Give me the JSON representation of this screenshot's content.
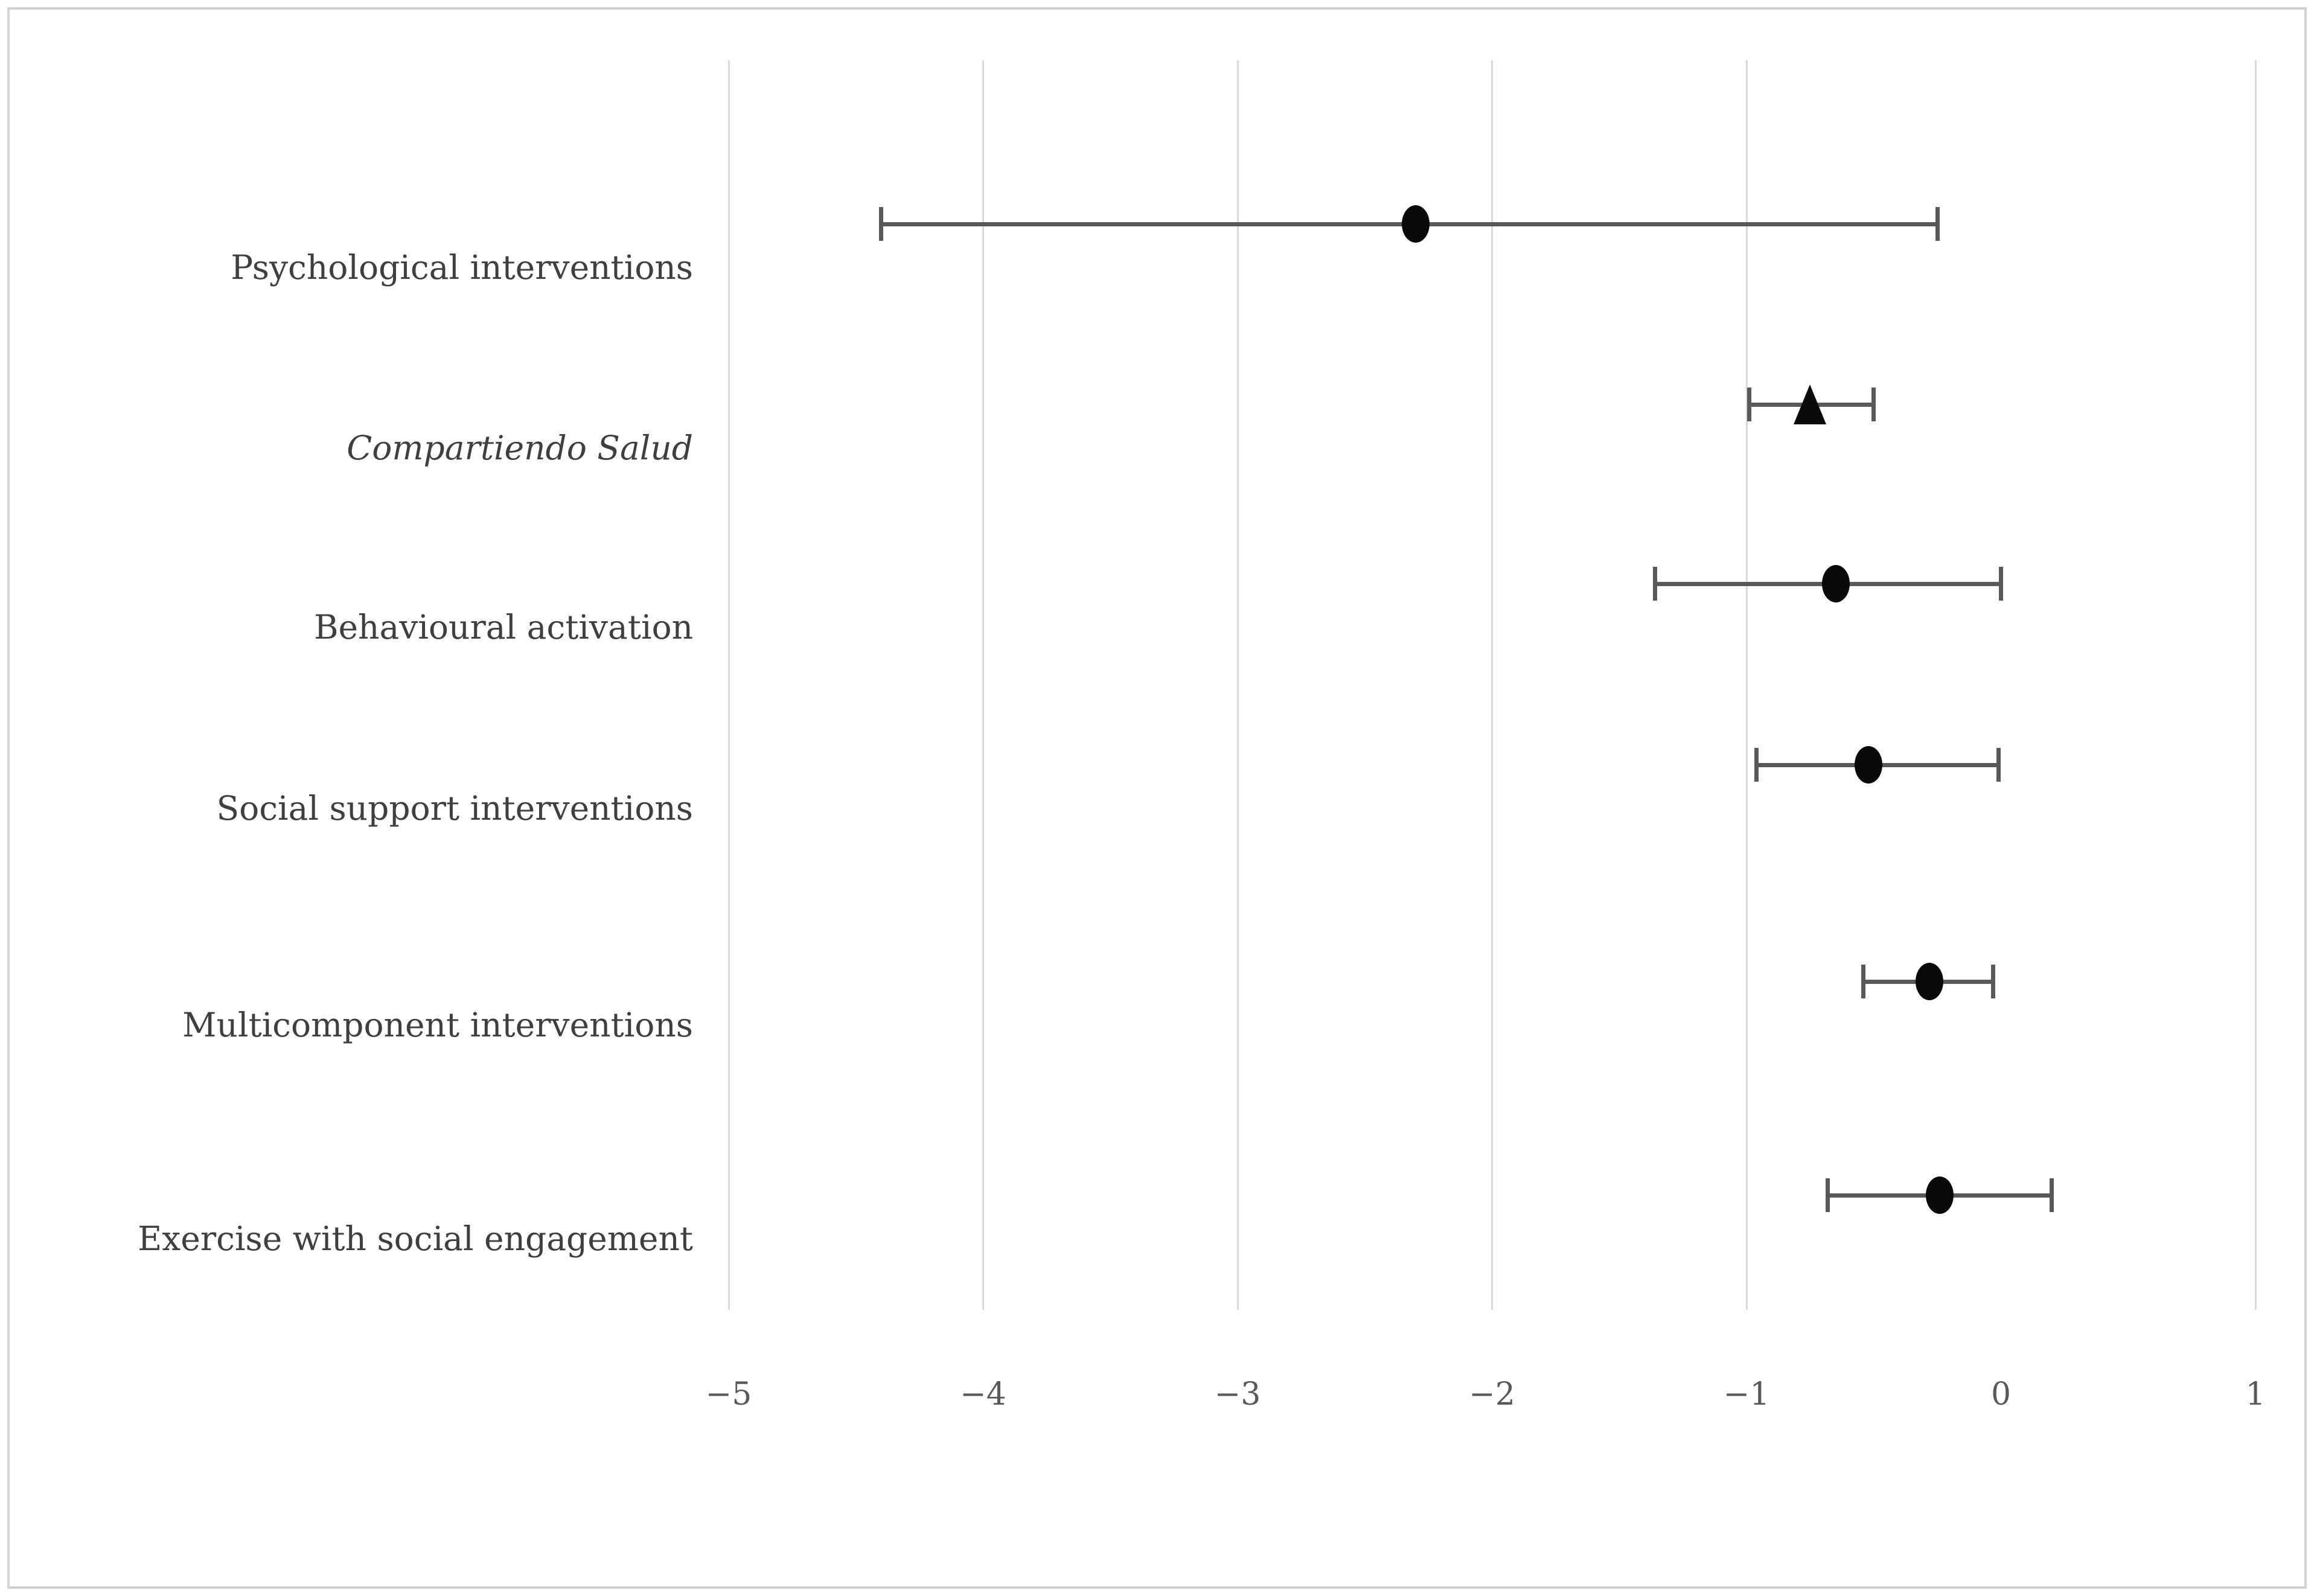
{
  "figure": {
    "title": "",
    "border_color": "#d2d2d2",
    "background_color": "#ffffff"
  },
  "chart_data": {
    "type": "scatter",
    "subtype": "forest-plot-with-error-bars",
    "title": "",
    "xlabel": "",
    "ylabel": "",
    "xlim": [
      -5,
      1
    ],
    "grid": true,
    "legend": false,
    "x_tick_values": [
      -5,
      -4,
      -3,
      -2,
      -1,
      0,
      1
    ],
    "x_tick_labels": [
      "−5",
      "−4",
      "−3",
      "−2",
      "−1",
      "0",
      "1"
    ],
    "gridline_values": [
      -5,
      -4,
      -3,
      -2,
      -1,
      1
    ],
    "categories": [
      "Psychological interventions",
      "Compartiendo Salud",
      "Behavioural activation",
      "Social support interventions",
      "Multicomponent interventions",
      "Exercise with social engagement"
    ],
    "points": [
      {
        "label": "Psychological interventions",
        "estimate": -2.3,
        "ci_low": -4.4,
        "ci_high": -0.25,
        "marker": "ellipse",
        "italic": false
      },
      {
        "label": "Compartiendo Salud",
        "estimate": -0.75,
        "ci_low": -0.99,
        "ci_high": -0.5,
        "marker": "triangle",
        "italic": true
      },
      {
        "label": "Behavioural activation",
        "estimate": -0.65,
        "ci_low": -1.36,
        "ci_high": 0.0,
        "marker": "ellipse",
        "italic": false
      },
      {
        "label": "Social support interventions",
        "estimate": -0.52,
        "ci_low": -0.96,
        "ci_high": -0.01,
        "marker": "ellipse",
        "italic": false
      },
      {
        "label": "Multicomponent interventions",
        "estimate": -0.28,
        "ci_low": -0.54,
        "ci_high": -0.03,
        "marker": "ellipse",
        "italic": false
      },
      {
        "label": "Exercise with social engagement",
        "estimate": -0.24,
        "ci_low": -0.68,
        "ci_high": 0.2,
        "marker": "ellipse",
        "italic": false
      }
    ],
    "colors": {
      "error_bar": "#595959",
      "marker": "#0a0a0a",
      "gridline": "#d9d9d9",
      "tick_label": "#595959",
      "category_label": "#3f3f3f"
    }
  }
}
